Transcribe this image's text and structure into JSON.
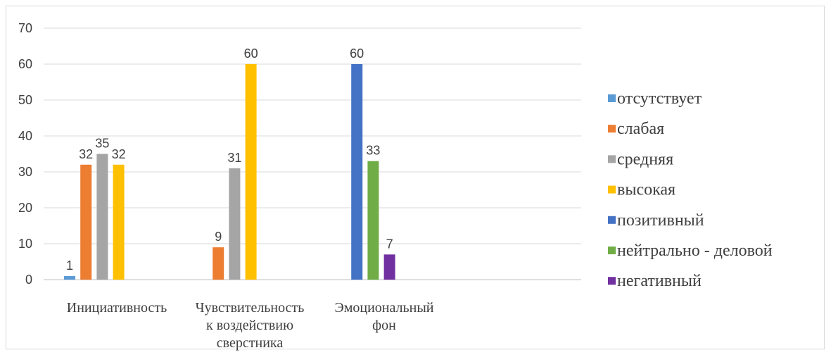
{
  "chart_data": {
    "type": "bar",
    "title": "",
    "xlabel": "",
    "ylabel": "",
    "ylim": [
      0,
      70
    ],
    "yticks": [
      0,
      10,
      20,
      30,
      40,
      50,
      60,
      70
    ],
    "grid": true,
    "legend_position": "right",
    "categories": [
      [
        "Инициативность"
      ],
      [
        "Чувствительность",
        "к воздействию",
        "сверстника"
      ],
      [
        "Эмоциональный",
        "фон"
      ]
    ],
    "series": [
      {
        "name": "отсутствует",
        "color": "#5B9BD5",
        "values": [
          1,
          null,
          null
        ]
      },
      {
        "name": "слабая",
        "color": "#ED7D31",
        "values": [
          32,
          9,
          null
        ]
      },
      {
        "name": "средняя",
        "color": "#A5A5A5",
        "values": [
          35,
          31,
          null
        ]
      },
      {
        "name": "высокая",
        "color": "#FFC000",
        "values": [
          32,
          60,
          null
        ]
      },
      {
        "name": "позитивный",
        "color": "#4472C4",
        "values": [
          null,
          null,
          60
        ]
      },
      {
        "name": "нейтрально - деловой",
        "color": "#70AD47",
        "values": [
          null,
          null,
          33
        ]
      },
      {
        "name": "негативный",
        "color": "#7030A0",
        "values": [
          null,
          null,
          7
        ]
      }
    ]
  }
}
